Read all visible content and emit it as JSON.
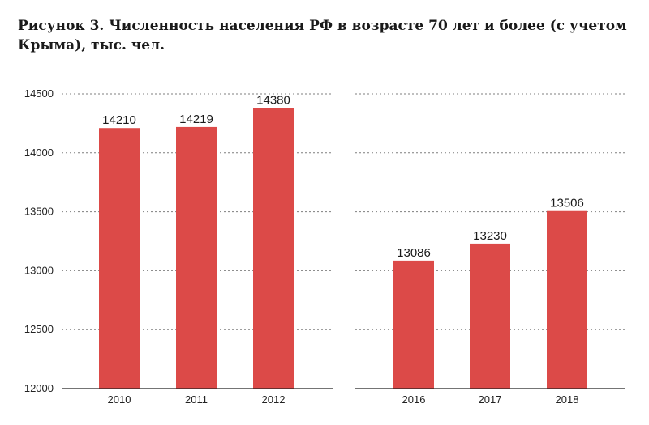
{
  "title": "Рисунок 3. Численность населения РФ в возрасте 70 лет и более (с учетом Крыма), тыс. чел.",
  "colors": {
    "bar": "#dc4a48",
    "grid": "#7f7f7f",
    "axis": "#222222"
  },
  "chart_data": [
    {
      "type": "bar",
      "categories": [
        "2010",
        "2011",
        "2012"
      ],
      "values": [
        14210,
        14219,
        14380
      ],
      "data_labels": [
        "14210",
        "14219",
        "14380"
      ],
      "ylim": [
        12000,
        14500
      ],
      "yticks": [
        12000,
        12500,
        13000,
        13500,
        14000,
        14500
      ],
      "ytick_labels": [
        "12000",
        "12500",
        "13000",
        "13500",
        "14000",
        "14500"
      ],
      "grid": "dotted horizontal",
      "xlabel": "",
      "ylabel": ""
    },
    {
      "type": "bar",
      "categories": [
        "2016",
        "2017",
        "2018"
      ],
      "values": [
        13086,
        13230,
        13506
      ],
      "data_labels": [
        "13086",
        "13230",
        "13506"
      ],
      "ylim": [
        12000,
        14500
      ],
      "grid": "dotted horizontal",
      "xlabel": "",
      "ylabel": ""
    }
  ]
}
